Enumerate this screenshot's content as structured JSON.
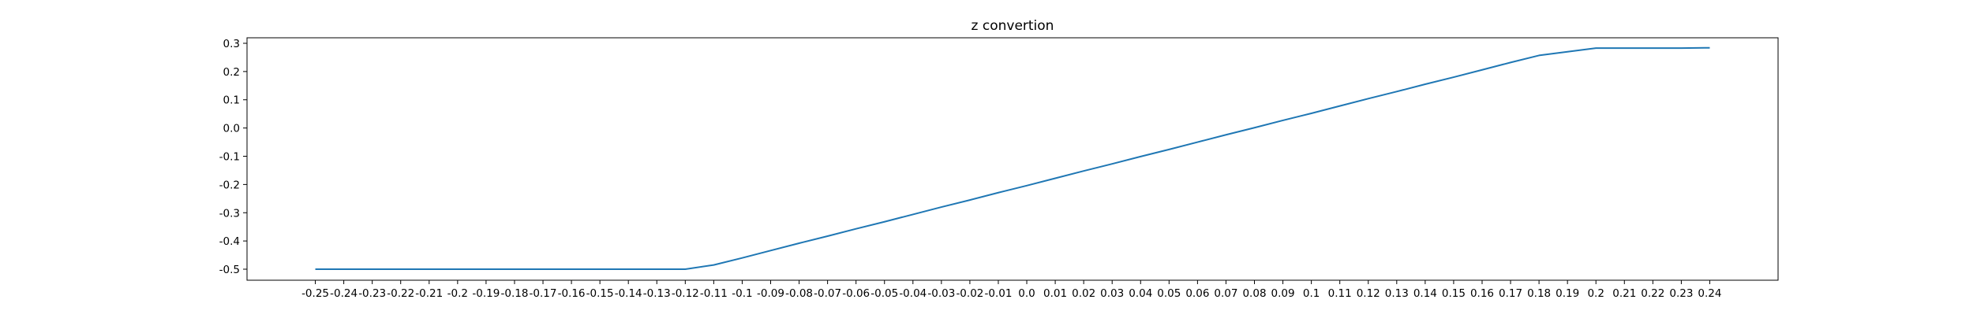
{
  "chart_data": {
    "type": "line",
    "title": "z convertion",
    "xlabel": "",
    "ylabel": "",
    "grid": false,
    "xlim": [
      -0.274,
      0.264
    ],
    "ylim": [
      -0.539,
      0.3195
    ],
    "xticks": [
      "-0.25",
      "-0.24",
      "-0.23",
      "-0.22",
      "-0.21",
      "-0.2",
      "-0.19",
      "-0.18",
      "-0.17",
      "-0.16",
      "-0.15",
      "-0.14",
      "-0.13",
      "-0.12",
      "-0.11",
      "-0.1",
      "-0.09",
      "-0.08",
      "-0.07",
      "-0.06",
      "-0.05",
      "-0.04",
      "-0.03",
      "-0.02",
      "-0.01",
      "0.0",
      "0.01",
      "0.02",
      "0.03",
      "0.04",
      "0.05",
      "0.06",
      "0.07",
      "0.08",
      "0.09",
      "0.1",
      "0.11",
      "0.12",
      "0.13",
      "0.14",
      "0.15",
      "0.16",
      "0.17",
      "0.18",
      "0.19",
      "0.2",
      "0.21",
      "0.22",
      "0.23",
      "0.24"
    ],
    "yticks": [
      "0.3",
      "0.2",
      "0.1",
      "0.0",
      "-0.1",
      "-0.2",
      "-0.3",
      "-0.4",
      "-0.5"
    ],
    "series": [
      {
        "color": "#1f77b4",
        "x": [
          -0.25,
          -0.24,
          -0.23,
          -0.22,
          -0.21,
          -0.2,
          -0.19,
          -0.18,
          -0.17,
          -0.16,
          -0.15,
          -0.14,
          -0.13,
          -0.12,
          -0.11,
          -0.1,
          -0.09,
          -0.08,
          -0.07,
          -0.06,
          -0.05,
          -0.04,
          -0.03,
          -0.02,
          -0.01,
          0.0,
          0.01,
          0.02,
          0.03,
          0.04,
          0.05,
          0.06,
          0.07,
          0.08,
          0.09,
          0.1,
          0.11,
          0.12,
          0.13,
          0.14,
          0.15,
          0.16,
          0.17,
          0.18,
          0.19,
          0.2,
          0.21,
          0.22,
          0.23,
          0.24
        ],
        "y": [
          -0.5,
          -0.5,
          -0.5,
          -0.5,
          -0.5,
          -0.5,
          -0.5,
          -0.5,
          -0.5,
          -0.5,
          -0.5,
          -0.5,
          -0.5,
          -0.5,
          -0.485,
          -0.46,
          -0.434,
          -0.408,
          -0.383,
          -0.357,
          -0.332,
          -0.306,
          -0.28,
          -0.255,
          -0.229,
          -0.204,
          -0.178,
          -0.152,
          -0.127,
          -0.101,
          -0.076,
          -0.05,
          -0.024,
          0.001,
          0.027,
          0.052,
          0.078,
          0.104,
          0.129,
          0.155,
          0.18,
          0.206,
          0.232,
          0.257,
          0.27,
          0.283,
          0.283,
          0.283,
          0.283,
          0.284
        ]
      }
    ]
  }
}
